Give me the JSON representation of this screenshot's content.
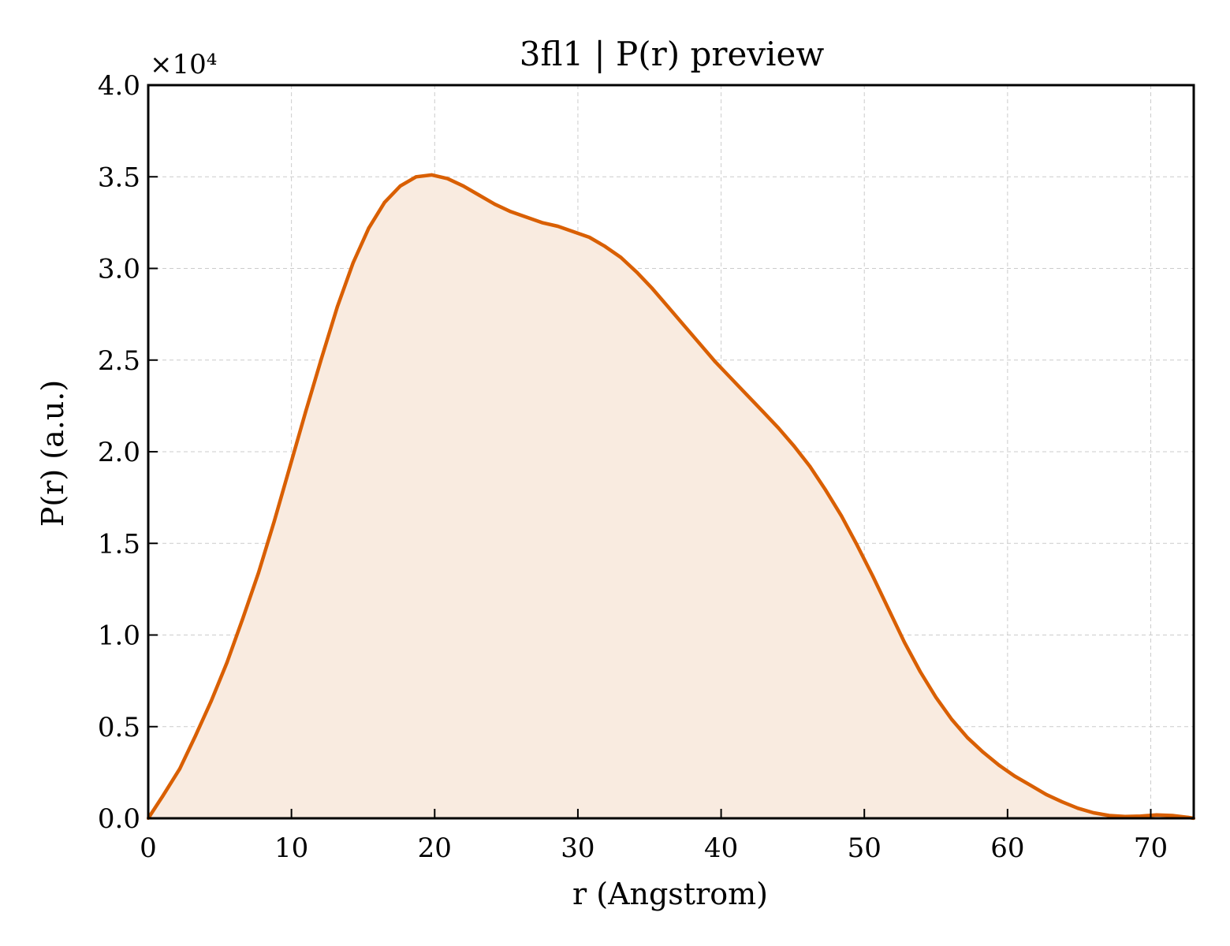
{
  "chart_data": {
    "type": "area",
    "title": "3fl1 | P(r) preview",
    "xlabel": "r (Angstrom)",
    "ylabel": "P(r) (a.u.)",
    "y_offset_label": "×10⁴",
    "xlim": [
      0,
      73
    ],
    "ylim": [
      0,
      40000
    ],
    "xticks": [
      0,
      10,
      20,
      30,
      40,
      50,
      60,
      70
    ],
    "xtick_labels": [
      "0",
      "10",
      "20",
      "30",
      "40",
      "50",
      "60",
      "70"
    ],
    "yticks": [
      0,
      5000,
      10000,
      15000,
      20000,
      25000,
      30000,
      35000,
      40000
    ],
    "ytick_labels": [
      "0.0",
      "0.5",
      "1.0",
      "1.5",
      "2.0",
      "2.5",
      "3.0",
      "3.5",
      "4.0"
    ],
    "grid": true,
    "line_color": "#d95f02",
    "fill_color": "#f9ebe0",
    "series": [
      {
        "x": [
          0,
          1,
          2.2,
          3.3,
          4.4,
          5.5,
          6.6,
          7.7,
          8.8,
          9.9,
          11,
          12.1,
          13.2,
          14.3,
          15.4,
          16.5,
          17.6,
          18.7,
          19.8,
          20.9,
          22,
          23.1,
          24.2,
          25.3,
          26.4,
          27.5,
          28.6,
          29.7,
          30.8,
          31.9,
          33,
          34.1,
          35.2,
          36.3,
          37.4,
          38.5,
          39.6,
          40.7,
          41.8,
          42.9,
          44,
          45.1,
          46.2,
          47.3,
          48.4,
          49.5,
          50.6,
          51.7,
          52.8,
          53.9,
          55,
          56.1,
          57.2,
          58.3,
          59.4,
          60.5,
          61.6,
          62.7,
          63.8,
          64.9,
          66,
          67.1,
          68.2,
          69.3,
          70.4,
          71.5,
          72.6,
          73
        ],
        "y": [
          0,
          1200,
          2700,
          4500,
          6400,
          8500,
          10900,
          13400,
          16200,
          19200,
          22200,
          25100,
          27900,
          30300,
          32200,
          33600,
          34500,
          35000,
          35100,
          34900,
          34500,
          34000,
          33500,
          33100,
          32800,
          32500,
          32300,
          32000,
          31700,
          31200,
          30600,
          29800,
          28900,
          27900,
          26900,
          25900,
          24900,
          24000,
          23100,
          22200,
          21300,
          20300,
          19200,
          17900,
          16500,
          14900,
          13200,
          11400,
          9600,
          8000,
          6600,
          5400,
          4400,
          3600,
          2900,
          2300,
          1800,
          1300,
          900,
          550,
          300,
          150,
          100,
          120,
          180,
          150,
          50,
          0
        ]
      }
    ]
  }
}
